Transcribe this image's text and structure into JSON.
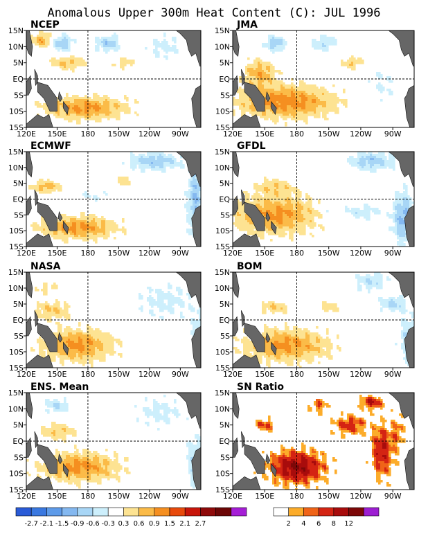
{
  "chart_data": {
    "type": "heatmap",
    "title": "Anomalous Upper 300m Heat Content (C): JUL 1996",
    "x_ticks": [
      "120E",
      "150E",
      "180",
      "150W",
      "120W",
      "90W"
    ],
    "y_ticks": [
      "15N",
      "10N",
      "5N",
      "EQ",
      "5S",
      "10S",
      "15S"
    ],
    "panels": [
      {
        "name": "NCEP",
        "features": [
          {
            "lon": 178,
            "lat": -9,
            "rx": 40,
            "ry": 3.5,
            "value": 1.0
          },
          {
            "lon": 160,
            "lat": 5,
            "rx": 18,
            "ry": 2,
            "value": 0.7
          },
          {
            "lon": 135,
            "lat": 12,
            "rx": 10,
            "ry": 2.5,
            "value": 0.8
          },
          {
            "lon": 200,
            "lat": 11,
            "rx": 12,
            "ry": 2.5,
            "value": -0.8
          },
          {
            "lon": 155,
            "lat": 11,
            "rx": 10,
            "ry": 2.5,
            "value": -0.9
          },
          {
            "lon": 215,
            "lat": 5,
            "rx": 10,
            "ry": 1.8,
            "value": 0.5
          },
          {
            "lon": 255,
            "lat": 10,
            "rx": 18,
            "ry": 4,
            "value": -0.4
          }
        ]
      },
      {
        "name": "JMA",
        "features": [
          {
            "lon": 170,
            "lat": -7,
            "rx": 45,
            "ry": 5,
            "value": 1.1
          },
          {
            "lon": 145,
            "lat": 2,
            "rx": 15,
            "ry": 4,
            "value": 0.8
          },
          {
            "lon": 160,
            "lat": 11,
            "rx": 10,
            "ry": 2.5,
            "value": -0.8
          },
          {
            "lon": 205,
            "lat": 11,
            "rx": 12,
            "ry": 2.5,
            "value": -0.6
          },
          {
            "lon": 232,
            "lat": 5,
            "rx": 10,
            "ry": 1.8,
            "value": 0.6
          },
          {
            "lon": 260,
            "lat": -2,
            "rx": 15,
            "ry": 6,
            "value": -0.3
          }
        ]
      },
      {
        "name": "ECMWF",
        "features": [
          {
            "lon": 170,
            "lat": -9,
            "rx": 38,
            "ry": 3.5,
            "value": 1.0
          },
          {
            "lon": 140,
            "lat": 4,
            "rx": 14,
            "ry": 2,
            "value": 0.8
          },
          {
            "lon": 215,
            "lat": 6,
            "rx": 6,
            "ry": 1.6,
            "value": 0.6
          },
          {
            "lon": 245,
            "lat": 12,
            "rx": 25,
            "ry": 3,
            "value": -0.8
          },
          {
            "lon": 285,
            "lat": 0,
            "rx": 8,
            "ry": 12,
            "value": -0.9
          },
          {
            "lon": 185,
            "lat": 1,
            "rx": 20,
            "ry": 2,
            "value": -0.3
          }
        ]
      },
      {
        "name": "GFDL",
        "features": [
          {
            "lon": 160,
            "lat": -5,
            "rx": 40,
            "ry": 6,
            "value": 1.0
          },
          {
            "lon": 160,
            "lat": 4,
            "rx": 20,
            "ry": 2.5,
            "value": 0.5
          },
          {
            "lon": 250,
            "lat": 12,
            "rx": 22,
            "ry": 3,
            "value": -0.8
          },
          {
            "lon": 280,
            "lat": -6,
            "rx": 10,
            "ry": 8,
            "value": -1.0
          },
          {
            "lon": 240,
            "lat": -4,
            "rx": 20,
            "ry": 2.5,
            "value": -0.5
          },
          {
            "lon": 210,
            "lat": -3,
            "rx": 8,
            "ry": 3,
            "value": -0.4
          }
        ]
      },
      {
        "name": "NASA",
        "features": [
          {
            "lon": 170,
            "lat": -8,
            "rx": 35,
            "ry": 5,
            "value": 1.0
          },
          {
            "lon": 145,
            "lat": 3,
            "rx": 18,
            "ry": 3,
            "value": 0.6
          },
          {
            "lon": 140,
            "lat": 10,
            "rx": 12,
            "ry": 2,
            "value": 0.4
          },
          {
            "lon": 255,
            "lat": 6,
            "rx": 30,
            "ry": 6,
            "value": -0.4
          },
          {
            "lon": 290,
            "lat": -4,
            "rx": 10,
            "ry": 8,
            "value": -0.5
          }
        ]
      },
      {
        "name": "BOM",
        "features": [
          {
            "lon": 170,
            "lat": -8,
            "rx": 40,
            "ry": 5,
            "value": 1.0
          },
          {
            "lon": 160,
            "lat": 4,
            "rx": 15,
            "ry": 2,
            "value": 0.6
          },
          {
            "lon": 210,
            "lat": 4,
            "rx": 12,
            "ry": 2,
            "value": 0.5
          },
          {
            "lon": 250,
            "lat": 12,
            "rx": 15,
            "ry": 3,
            "value": -0.6
          },
          {
            "lon": 270,
            "lat": 5,
            "rx": 12,
            "ry": 2.5,
            "value": -0.7
          },
          {
            "lon": 285,
            "lat": -6,
            "rx": 10,
            "ry": 8,
            "value": -0.6
          }
        ]
      },
      {
        "name": "ENS. Mean",
        "features": [
          {
            "lon": 172,
            "lat": -8,
            "rx": 38,
            "ry": 4.5,
            "value": 1.0
          },
          {
            "lon": 150,
            "lat": 3,
            "rx": 20,
            "ry": 2.5,
            "value": 0.6
          },
          {
            "lon": 150,
            "lat": 11,
            "rx": 12,
            "ry": 2.5,
            "value": -0.6
          },
          {
            "lon": 250,
            "lat": 9,
            "rx": 25,
            "ry": 5,
            "value": -0.4
          },
          {
            "lon": 285,
            "lat": -6,
            "rx": 10,
            "ry": 8,
            "value": -0.6
          }
        ]
      },
      {
        "name": "SN Ratio",
        "features": [
          {
            "lon": 180,
            "lat": -8,
            "rx": 25,
            "ry": 5,
            "value": 8
          },
          {
            "lon": 230,
            "lat": 5,
            "rx": 15,
            "ry": 3,
            "value": 5
          },
          {
            "lon": 260,
            "lat": -3,
            "rx": 10,
            "ry": 8,
            "value": 6
          },
          {
            "lon": 150,
            "lat": 5,
            "rx": 10,
            "ry": 2,
            "value": 4
          },
          {
            "lon": 250,
            "lat": 12,
            "rx": 10,
            "ry": 2,
            "value": 6
          },
          {
            "lon": 200,
            "lat": 11,
            "rx": 8,
            "ry": 2,
            "value": 4
          },
          {
            "lon": 275,
            "lat": 3,
            "rx": 6,
            "ry": 6,
            "value": 3
          }
        ]
      }
    ],
    "colorbar_anomaly": {
      "colors": [
        "#2a5bd7",
        "#3a78e0",
        "#5e9be9",
        "#84b8f0",
        "#a8d6f6",
        "#cdeffc",
        "#ffffff",
        "#fde392",
        "#fbbb48",
        "#f58f20",
        "#e84a0c",
        "#c8150a",
        "#8f0a0a",
        "#6c0606",
        "#a51ed6"
      ],
      "labels": [
        "-2.7",
        "-2.1",
        "-1.5",
        "-0.9",
        "-0.6",
        "-0.3",
        "0.3",
        "0.6",
        "0.9",
        "1.5",
        "2.1",
        "2.7"
      ]
    },
    "colorbar_sn": {
      "colors": [
        "#ffffff",
        "#fcac2a",
        "#f06418",
        "#d42413",
        "#a80c0c",
        "#7d0808",
        "#9d1ed2"
      ],
      "labels": [
        "2",
        "4",
        "6",
        "8",
        "12"
      ]
    }
  }
}
